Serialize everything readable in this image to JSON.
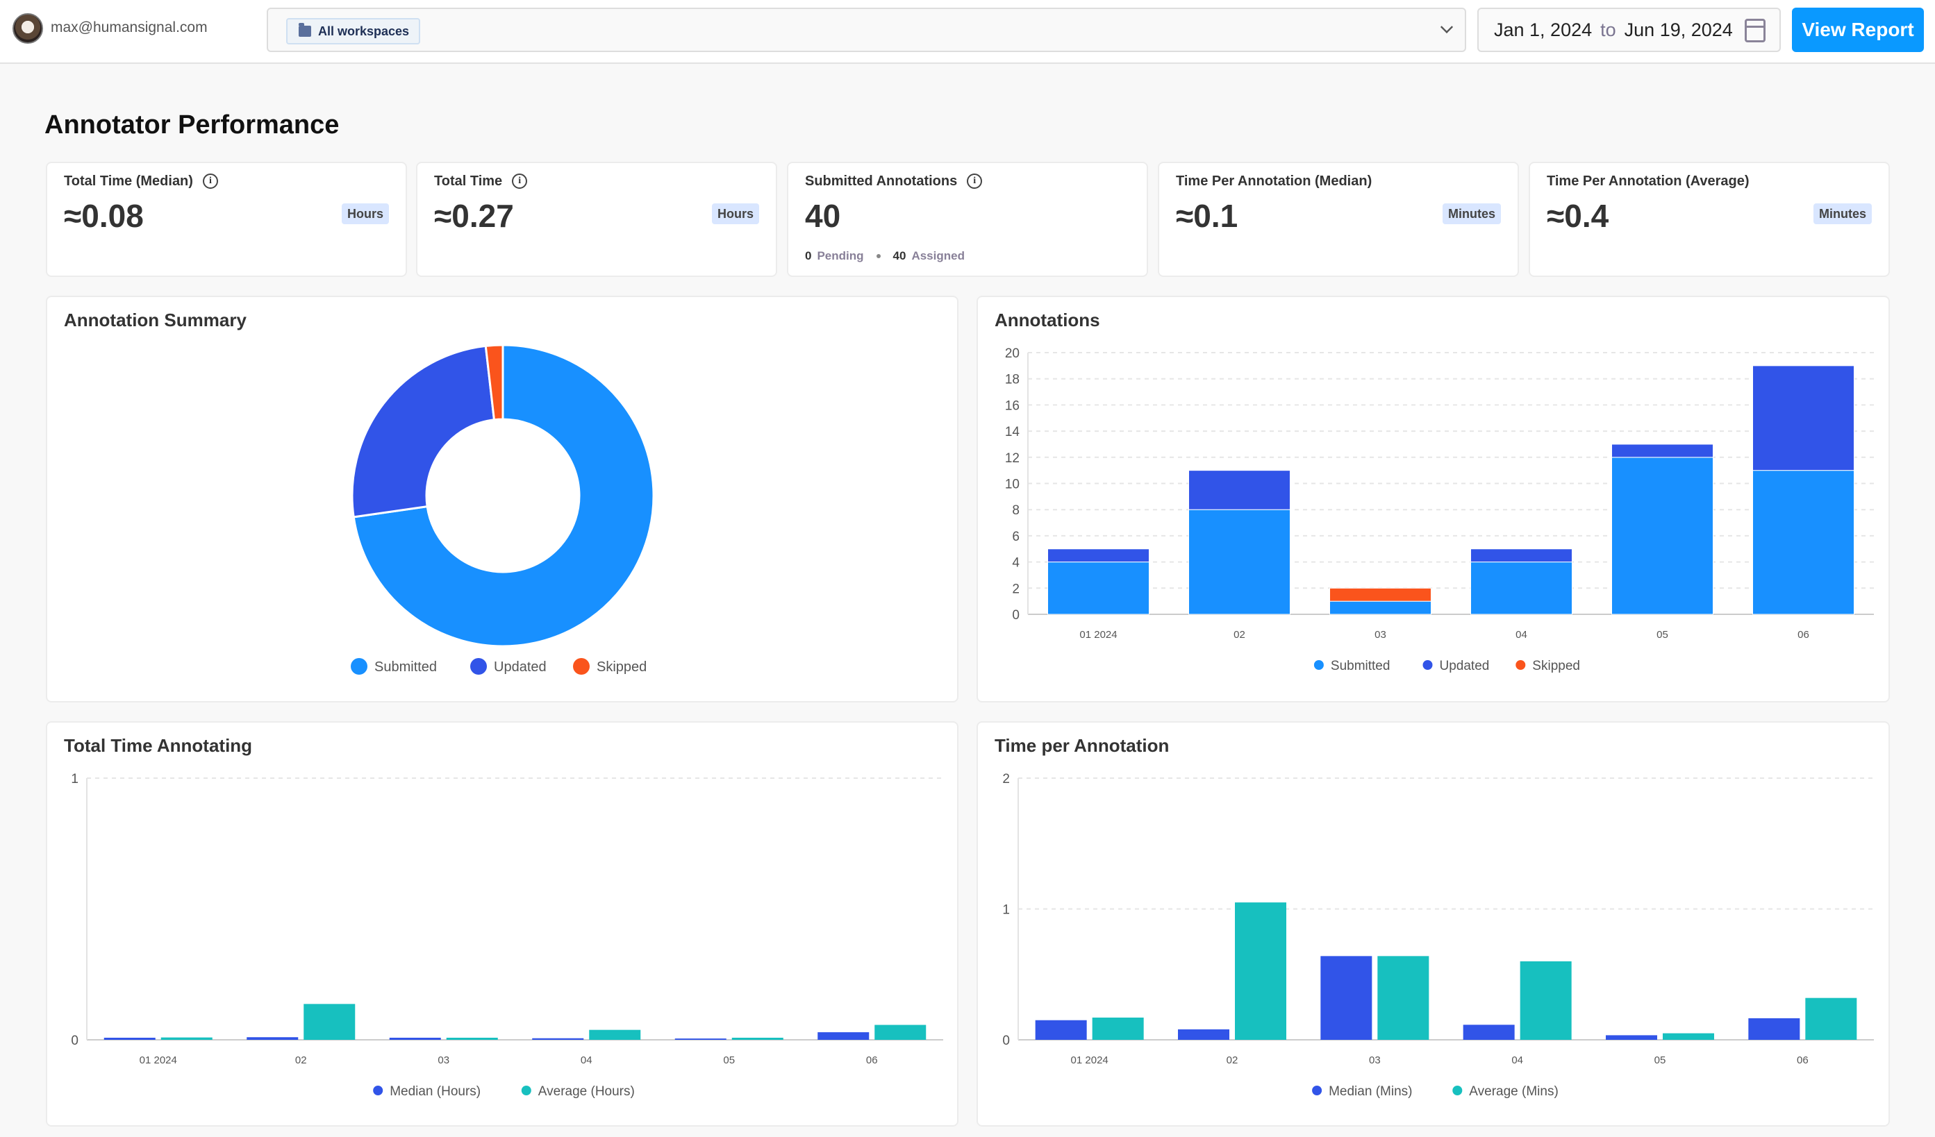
{
  "header": {
    "email": "max@humansignal.com",
    "workspace": "All workspaces",
    "date_from": "Jan 1, 2024",
    "date_to_word": "to",
    "date_to": "Jun 19, 2024",
    "view_report": "View Report"
  },
  "page_title": "Annotator Performance",
  "stats": [
    {
      "label": "Total Time (Median)",
      "value": "≈0.08",
      "unit": "Hours",
      "info": true
    },
    {
      "label": "Total Time",
      "value": "≈0.27",
      "unit": "Hours",
      "info": true
    },
    {
      "label": "Submitted Annotations",
      "value": "40",
      "info": true,
      "pending": "0",
      "pending_label": "Pending",
      "assigned": "40",
      "assigned_label": "Assigned"
    },
    {
      "label": "Time Per Annotation (Median)",
      "value": "≈0.1",
      "unit": "Minutes"
    },
    {
      "label": "Time Per Annotation (Average)",
      "value": "≈0.4",
      "unit": "Minutes"
    }
  ],
  "colors": {
    "submitted": "#1890ff",
    "updated": "#3154e8",
    "skipped": "#fa541c",
    "average": "#17c0bf",
    "accent": "#0a99ff"
  },
  "chart_data": [
    {
      "type": "pie",
      "title": "Annotation Summary",
      "donut": true,
      "categories": [
        "Submitted",
        "Updated",
        "Skipped"
      ],
      "values": [
        40,
        14,
        1
      ],
      "legend": "bottom"
    },
    {
      "type": "bar",
      "stacked": true,
      "title": "Annotations",
      "categories": [
        "01 2024",
        "02",
        "03",
        "04",
        "05",
        "06"
      ],
      "series": [
        {
          "name": "Submitted",
          "values": [
            4,
            8,
            1,
            4,
            12,
            11
          ]
        },
        {
          "name": "Updated",
          "values": [
            1,
            3,
            0,
            1,
            1,
            8
          ]
        },
        {
          "name": "Skipped",
          "values": [
            0,
            0,
            1,
            0,
            0,
            0
          ]
        }
      ],
      "ylim": [
        0,
        20
      ],
      "yticks": [
        "0",
        "2",
        "4",
        "6",
        "8",
        "10",
        "12",
        "14",
        "16",
        "18",
        "20"
      ],
      "grid": true,
      "legend": "bottom"
    },
    {
      "type": "bar",
      "title": "Total Time Annotating",
      "categories": [
        "01 2024",
        "02",
        "03",
        "04",
        "05",
        "06"
      ],
      "series": [
        {
          "name": "Median (Hours)",
          "values": [
            0.008,
            0.01,
            0.008,
            0.006,
            0.005,
            0.029
          ]
        },
        {
          "name": "Average (Hours)",
          "values": [
            0.009,
            0.137,
            0.008,
            0.038,
            0.008,
            0.057
          ]
        }
      ],
      "ylim": [
        0,
        1
      ],
      "yticks": [
        "0",
        "1"
      ],
      "grid": true,
      "legend": "bottom"
    },
    {
      "type": "bar",
      "title": "Time per Annotation",
      "categories": [
        "01 2024",
        "02",
        "03",
        "04",
        "05",
        "06"
      ],
      "series": [
        {
          "name": "Median (Mins)",
          "values": [
            0.15,
            0.08,
            0.64,
            0.115,
            0.035,
            0.165
          ]
        },
        {
          "name": "Average (Mins)",
          "values": [
            0.17,
            1.05,
            0.64,
            0.6,
            0.05,
            0.32
          ]
        }
      ],
      "ylim": [
        0,
        2
      ],
      "yticks": [
        "0",
        "1",
        "2"
      ],
      "grid": true,
      "legend": "bottom"
    }
  ]
}
